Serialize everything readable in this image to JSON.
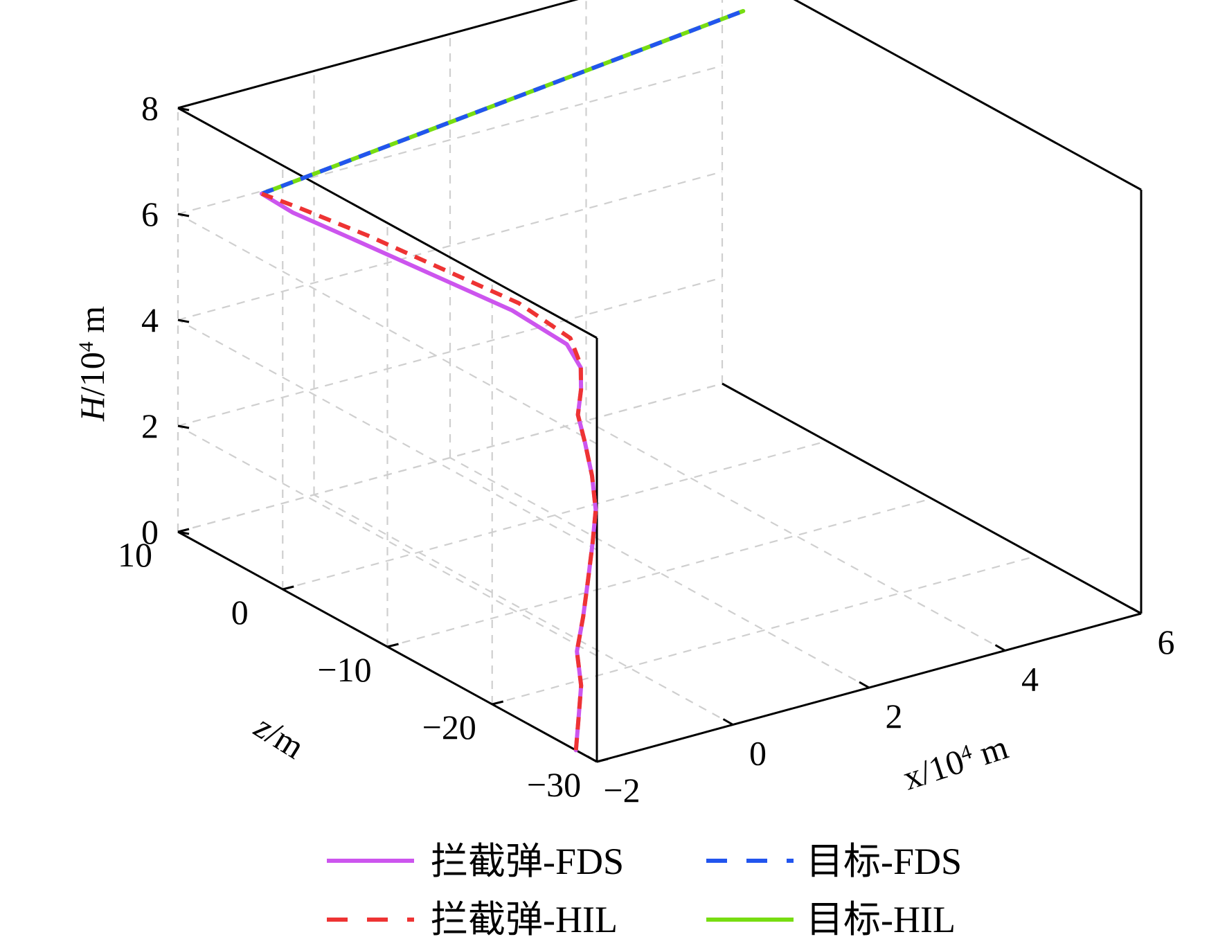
{
  "chart_data": {
    "type": "line3d",
    "axes": {
      "x": {
        "label_var": "x",
        "label_unit": "/10",
        "label_exp": "4",
        "label_tail": " m",
        "ticks": [
          "−2",
          "0",
          "2",
          "4",
          "6"
        ],
        "range": [
          -2,
          6
        ]
      },
      "z": {
        "label_var": "z",
        "label_unit": "/m",
        "ticks": [
          "−30",
          "−20",
          "−10",
          "0",
          "10"
        ],
        "range": [
          -30,
          10
        ]
      },
      "H": {
        "label_var": "H",
        "label_unit": "/10",
        "label_exp": "4",
        "label_tail": " m",
        "ticks": [
          "0",
          "2",
          "4",
          "6",
          "8"
        ],
        "range": [
          0,
          8
        ]
      }
    },
    "grid": true,
    "legend_position": "bottom",
    "series": [
      {
        "name": "拦截弹-FDS",
        "color": "#cc55ee",
        "style": "solid",
        "points": [
          [
            -2,
            -28,
            0
          ],
          [
            -1.5,
            -25,
            0.1
          ],
          [
            -1.0,
            -22,
            0.22
          ],
          [
            -0.6,
            -19,
            0.4
          ],
          [
            -0.2,
            -17,
            0.7
          ],
          [
            0.1,
            -15.5,
            1.1
          ],
          [
            0.4,
            -14,
            1.55
          ],
          [
            0.6,
            -13,
            2.0
          ],
          [
            0.7,
            -12,
            2.5
          ],
          [
            0.75,
            -11,
            3.0
          ],
          [
            0.8,
            -10,
            3.4
          ],
          [
            1.0,
            -9,
            3.7
          ],
          [
            1.15,
            -8,
            3.95
          ],
          [
            1.1,
            -7,
            4.3
          ],
          [
            0.6,
            -5,
            4.9
          ],
          [
            -0.2,
            -3,
            5.6
          ],
          [
            -1.0,
            -1,
            6.3
          ],
          [
            -1.7,
            1,
            6.9
          ],
          [
            -2,
            2,
            7.25
          ]
        ]
      },
      {
        "name": "拦截弹-HIL",
        "color": "#ee3333",
        "style": "dashed",
        "points": [
          [
            -2,
            -28,
            0
          ],
          [
            -1.5,
            -25,
            0.1
          ],
          [
            -1.0,
            -22,
            0.22
          ],
          [
            -0.6,
            -19,
            0.4
          ],
          [
            -0.2,
            -17,
            0.7
          ],
          [
            0.1,
            -15.5,
            1.1
          ],
          [
            0.4,
            -14,
            1.55
          ],
          [
            0.6,
            -13,
            2.0
          ],
          [
            0.7,
            -12,
            2.5
          ],
          [
            0.75,
            -11,
            3.0
          ],
          [
            0.8,
            -10,
            3.4
          ],
          [
            1.0,
            -9,
            3.7
          ],
          [
            1.15,
            -8,
            4.0
          ],
          [
            1.15,
            -7,
            4.4
          ],
          [
            0.7,
            -5,
            5.0
          ],
          [
            -0.1,
            -3,
            5.7
          ],
          [
            -0.9,
            -1,
            6.4
          ],
          [
            -1.6,
            1,
            6.95
          ],
          [
            -2,
            2,
            7.25
          ]
        ]
      },
      {
        "name": "目标-FDS",
        "color": "#2255ee",
        "style": "dashed",
        "points": [
          [
            -2,
            2,
            7.25
          ],
          [
            6,
            8,
            7.25
          ]
        ]
      },
      {
        "name": "目标-HIL",
        "color": "#77dd11",
        "style": "solid",
        "points": [
          [
            -2,
            2,
            7.25
          ],
          [
            6,
            8,
            7.25
          ]
        ]
      }
    ]
  }
}
